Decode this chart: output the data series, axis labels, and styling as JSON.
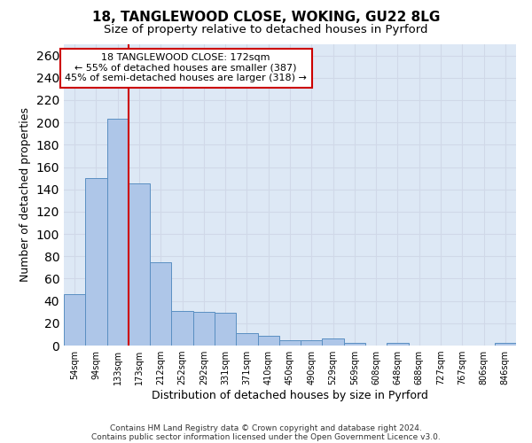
{
  "title1": "18, TANGLEWOOD CLOSE, WOKING, GU22 8LG",
  "title2": "Size of property relative to detached houses in Pyrford",
  "xlabel": "Distribution of detached houses by size in Pyrford",
  "ylabel": "Number of detached properties",
  "categories": [
    "54sqm",
    "94sqm",
    "133sqm",
    "173sqm",
    "212sqm",
    "252sqm",
    "292sqm",
    "331sqm",
    "371sqm",
    "410sqm",
    "450sqm",
    "490sqm",
    "529sqm",
    "569sqm",
    "608sqm",
    "648sqm",
    "688sqm",
    "727sqm",
    "767sqm",
    "806sqm",
    "846sqm"
  ],
  "values": [
    46,
    150,
    203,
    145,
    75,
    31,
    30,
    29,
    11,
    9,
    5,
    5,
    6,
    2,
    0,
    2,
    0,
    0,
    0,
    0,
    2
  ],
  "bar_color": "#aec6e8",
  "bar_edge_color": "#5a8fc2",
  "vline_x_idx": 2,
  "vline_color": "#cc0000",
  "annotation_line1": "18 TANGLEWOOD CLOSE: 172sqm",
  "annotation_line2": "← 55% of detached houses are smaller (387)",
  "annotation_line3": "45% of semi-detached houses are larger (318) →",
  "annotation_box_color": "#ffffff",
  "annotation_box_edge": "#cc0000",
  "ylim": [
    0,
    270
  ],
  "yticks": [
    0,
    20,
    40,
    60,
    80,
    100,
    120,
    140,
    160,
    180,
    200,
    220,
    240,
    260
  ],
  "grid_color": "#d0d8e8",
  "bg_color": "#dde8f5",
  "footnote1": "Contains HM Land Registry data © Crown copyright and database right 2024.",
  "footnote2": "Contains public sector information licensed under the Open Government Licence v3.0.",
  "title1_fontsize": 11,
  "title2_fontsize": 9.5,
  "xlabel_fontsize": 9,
  "ylabel_fontsize": 9,
  "tick_fontsize": 7
}
